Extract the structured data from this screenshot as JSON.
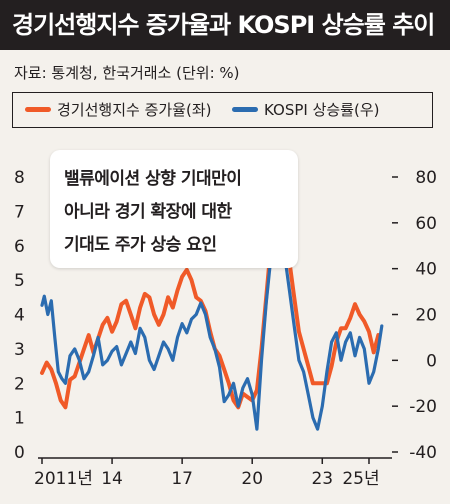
{
  "title": "경기선행지수 증가율과 KOSPI 상승률 추이",
  "source": "자료: 통계청, 한국거래소 (단위: %)",
  "legend": [
    {
      "label": "경기선행지수 증가율(좌)",
      "color": "#f05a28"
    },
    {
      "label": "KOSPI 상승률(우)",
      "color": "#2b6cb0"
    }
  ],
  "callout": {
    "lines": [
      "밸류에이션 상향 기대만이",
      "아니라 경기 확장에 대한",
      "기대도 주가 상승 요인"
    ]
  },
  "chart_data": {
    "type": "line",
    "title": "경기선행지수 증가율과 KOSPI 상승률 추이",
    "x_tick_labels": [
      "2011년",
      "14",
      "17",
      "20",
      "23",
      "25년"
    ],
    "x_tick_years": [
      2011,
      2014,
      2017,
      2020,
      2023,
      2025
    ],
    "xlim": [
      2011,
      2025.6
    ],
    "y_left": {
      "label": "",
      "ylim": [
        0,
        8
      ],
      "ticks": [
        0,
        1,
        2,
        3,
        4,
        5,
        6,
        7,
        8
      ],
      "series_name": "경기선행지수 증가율(좌)"
    },
    "y_right": {
      "label": "",
      "ylim": [
        -40,
        80
      ],
      "ticks": [
        -40,
        -20,
        0,
        20,
        40,
        60,
        80
      ],
      "series_name": "KOSPI 상승률(우)"
    },
    "grid": false,
    "series": [
      {
        "name": "경기선행지수 증가율(좌)",
        "axis": "left",
        "color": "#f05a28",
        "x": [
          2011.0,
          2011.2,
          2011.4,
          2011.6,
          2011.8,
          2012.0,
          2012.2,
          2012.4,
          2012.6,
          2012.8,
          2013.0,
          2013.2,
          2013.4,
          2013.6,
          2013.8,
          2014.0,
          2014.2,
          2014.4,
          2014.6,
          2014.8,
          2015.0,
          2015.2,
          2015.4,
          2015.6,
          2015.8,
          2016.0,
          2016.2,
          2016.4,
          2016.6,
          2016.8,
          2017.0,
          2017.2,
          2017.4,
          2017.6,
          2017.8,
          2018.0,
          2018.2,
          2018.4,
          2018.6,
          2018.8,
          2019.0,
          2019.2,
          2019.4,
          2019.6,
          2019.8,
          2020.0,
          2020.2,
          2020.4,
          2020.6,
          2020.8,
          2021.0,
          2021.2,
          2021.4,
          2021.6,
          2021.8,
          2022.0,
          2022.2,
          2022.4,
          2022.6,
          2022.8,
          2023.0,
          2023.2,
          2023.4,
          2023.6,
          2023.8,
          2024.0,
          2024.2,
          2024.4,
          2024.6,
          2024.8,
          2025.0,
          2025.2,
          2025.4
        ],
        "values": [
          2.3,
          2.6,
          2.4,
          2.0,
          1.5,
          1.3,
          2.1,
          2.2,
          2.6,
          3.0,
          3.4,
          2.9,
          3.3,
          3.7,
          3.9,
          3.5,
          3.8,
          4.3,
          4.4,
          4.0,
          3.6,
          4.2,
          4.6,
          4.5,
          4.0,
          3.7,
          4.0,
          4.5,
          4.2,
          4.7,
          5.1,
          5.3,
          5.0,
          4.5,
          4.4,
          4.1,
          3.5,
          3.0,
          2.8,
          2.4,
          2.0,
          1.5,
          1.3,
          1.7,
          1.6,
          1.5,
          1.8,
          3.0,
          4.5,
          6.0,
          6.8,
          7.3,
          6.5,
          5.5,
          4.5,
          3.5,
          3.0,
          2.5,
          2.0,
          2.0,
          2.0,
          2.0,
          2.5,
          3.2,
          3.6,
          3.6,
          3.9,
          4.3,
          4.0,
          3.8,
          3.5,
          2.9,
          3.4
        ]
      },
      {
        "name": "KOSPI 상승률(우)",
        "axis": "right",
        "color": "#2b6cb0",
        "x": [
          2011.0,
          2011.1,
          2011.25,
          2011.4,
          2011.55,
          2011.7,
          2011.85,
          2012.0,
          2012.2,
          2012.4,
          2012.6,
          2012.8,
          2013.0,
          2013.2,
          2013.4,
          2013.6,
          2013.8,
          2014.0,
          2014.2,
          2014.4,
          2014.6,
          2014.8,
          2015.0,
          2015.2,
          2015.4,
          2015.6,
          2015.8,
          2016.0,
          2016.2,
          2016.4,
          2016.6,
          2016.8,
          2017.0,
          2017.2,
          2017.4,
          2017.6,
          2017.8,
          2018.0,
          2018.2,
          2018.4,
          2018.6,
          2018.8,
          2019.0,
          2019.2,
          2019.4,
          2019.6,
          2019.8,
          2020.0,
          2020.2,
          2020.4,
          2020.6,
          2020.8,
          2021.0,
          2021.2,
          2021.4,
          2021.6,
          2021.8,
          2022.0,
          2022.2,
          2022.4,
          2022.6,
          2022.8,
          2023.0,
          2023.2,
          2023.4,
          2023.6,
          2023.8,
          2024.0,
          2024.2,
          2024.4,
          2024.6,
          2024.8,
          2025.0,
          2025.2,
          2025.4,
          2025.55
        ],
        "values": [
          24,
          28,
          20,
          26,
          10,
          -5,
          -8,
          -10,
          2,
          5,
          0,
          -8,
          -5,
          2,
          10,
          -2,
          0,
          4,
          6,
          -2,
          3,
          8,
          3,
          14,
          10,
          0,
          -4,
          2,
          8,
          5,
          0,
          10,
          16,
          12,
          18,
          20,
          25,
          20,
          10,
          5,
          -3,
          -18,
          -15,
          -10,
          -20,
          -12,
          -8,
          -15,
          -30,
          0,
          25,
          45,
          75,
          60,
          45,
          30,
          15,
          0,
          -5,
          -15,
          -25,
          -30,
          -20,
          -5,
          8,
          12,
          0,
          8,
          12,
          2,
          10,
          5,
          -10,
          -5,
          5,
          15
        ]
      }
    ]
  }
}
